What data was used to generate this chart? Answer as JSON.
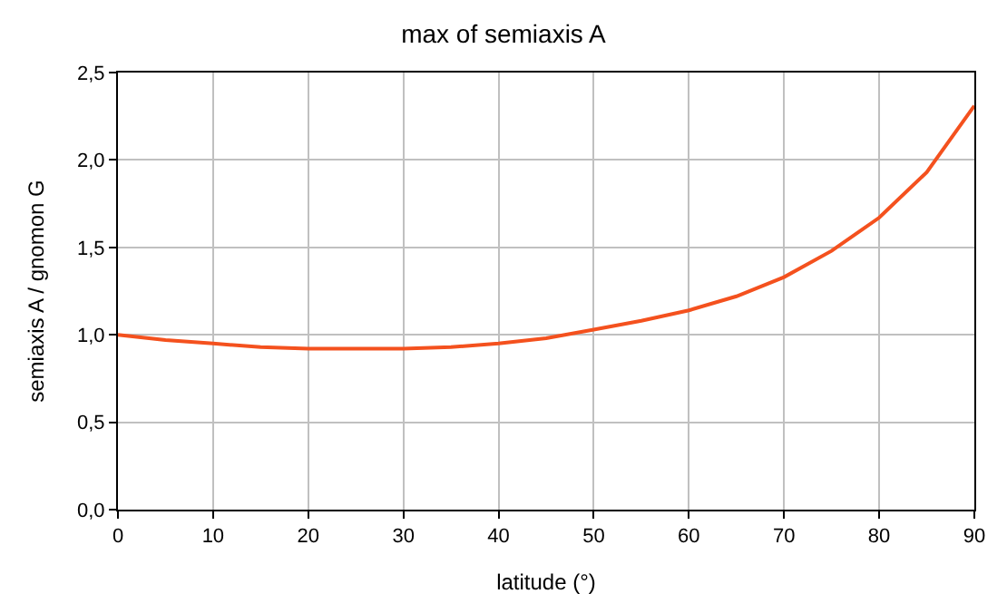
{
  "chart_data": {
    "type": "line",
    "title": "max of semiaxis A",
    "xlabel": "latitude (°)",
    "ylabel": "semiaxis A / gnomon G",
    "x": [
      0,
      5,
      10,
      15,
      20,
      25,
      30,
      35,
      40,
      45,
      50,
      55,
      60,
      65,
      70,
      75,
      80,
      85,
      90
    ],
    "series": [
      {
        "color": "#f4511e",
        "values": [
          1.0,
          0.97,
          0.95,
          0.93,
          0.92,
          0.92,
          0.92,
          0.93,
          0.95,
          0.98,
          1.03,
          1.08,
          1.14,
          1.22,
          1.33,
          1.48,
          1.67,
          1.93,
          2.31
        ]
      }
    ],
    "xlim": [
      0,
      90
    ],
    "xticks": [
      0,
      10,
      20,
      30,
      40,
      50,
      60,
      70,
      80,
      90
    ],
    "ylim": [
      0,
      2.5
    ],
    "yticks": [
      {
        "value": 0,
        "label": "0,0"
      },
      {
        "value": 0.5,
        "label": "0,5"
      },
      {
        "value": 1,
        "label": "1,0"
      },
      {
        "value": 1.5,
        "label": "1,5"
      },
      {
        "value": 2,
        "label": "2,0"
      },
      {
        "value": 2.5,
        "label": "2,5"
      }
    ],
    "grid": true,
    "marker": "none",
    "line_style": "solid"
  }
}
